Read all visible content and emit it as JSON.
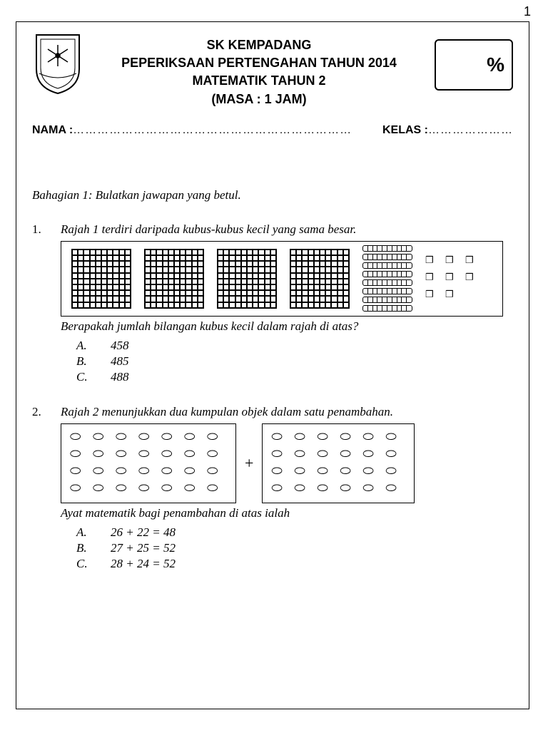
{
  "page_number": "1",
  "header": {
    "line1": "SK KEMPADANG",
    "line2": "PEPERIKSAAN PERTENGAHAN TAHUN 2014",
    "line3": "MATEMATIK TAHUN 2",
    "line4": "(MASA : 1 JAM)",
    "score_symbol": "%"
  },
  "id": {
    "nama_label": "NAMA :",
    "nama_dots": "……………………………………………………………",
    "kelas_label": "KELAS :",
    "kelas_dots": "…………………"
  },
  "section_instruction": "Bahagian 1: Bulatkan jawapan yang betul.",
  "q1": {
    "num": "1.",
    "text": "Rajah 1 terdiri daripada kubus-kubus kecil yang sama besar.",
    "subtext": "Berapakah jumlah bilangan kubus kecil dalam rajah di atas?",
    "hundreds_count": 4,
    "tens_count": 8,
    "ones_count": 8,
    "opts": {
      "A": "458",
      "B": "485",
      "C": "488"
    }
  },
  "q2": {
    "num": "2.",
    "text": "Rajah 2 menunjukkan dua kumpulan objek dalam satu penambahan.",
    "subtext": "Ayat matematik bagi penambahan di atas ialah",
    "left_rows": [
      7,
      7,
      7,
      7
    ],
    "right_rows": [
      6,
      6,
      6,
      6
    ],
    "plus": "+",
    "opts": {
      "A": "26 + 22 = 48",
      "B": "27 + 25 = 52",
      "C": "28 + 24 = 52"
    }
  },
  "labels": {
    "A": "A.",
    "B": "B.",
    "C": "C."
  }
}
